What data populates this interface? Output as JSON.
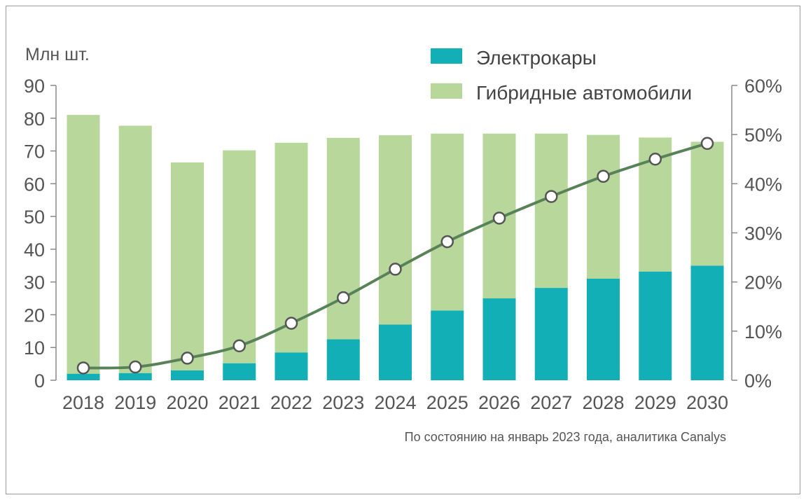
{
  "chart_data": {
    "type": "bar",
    "stacked": true,
    "categories": [
      "2018",
      "2019",
      "2020",
      "2021",
      "2022",
      "2023",
      "2024",
      "2025",
      "2026",
      "2027",
      "2028",
      "2029",
      "2030"
    ],
    "series": [
      {
        "name": "Электрокары",
        "color": "#12b0b6",
        "values": [
          2,
          2.2,
          3,
          5.2,
          8.5,
          12.5,
          17,
          21.3,
          25,
          28.2,
          31,
          33.2,
          35
        ]
      },
      {
        "name": "Гибридные автомобили",
        "color": "#b7d89a",
        "values": [
          79,
          75.5,
          63.5,
          65,
          64,
          61.5,
          57.8,
          54,
          50.3,
          47.1,
          43.9,
          40.9,
          37.8
        ]
      }
    ],
    "line": {
      "color": "#4b8a4b",
      "values": [
        2.5,
        2.7,
        4.5,
        7,
        11.6,
        16.8,
        22.6,
        28.2,
        33,
        37.4,
        41.5,
        45,
        48.2
      ]
    },
    "ylabel": "Млн шт.",
    "ylim": [
      0,
      90
    ],
    "yticks": [
      0,
      10,
      20,
      30,
      40,
      50,
      60,
      70,
      80,
      90
    ],
    "y2lim": [
      0,
      60
    ],
    "y2ticks": [
      "0%",
      "10%",
      "20%",
      "30%",
      "40%",
      "50%",
      "60%"
    ],
    "legend_position": "top-right",
    "source_note": "По состоянию на январь 2023 года, аналитика Canalys"
  }
}
